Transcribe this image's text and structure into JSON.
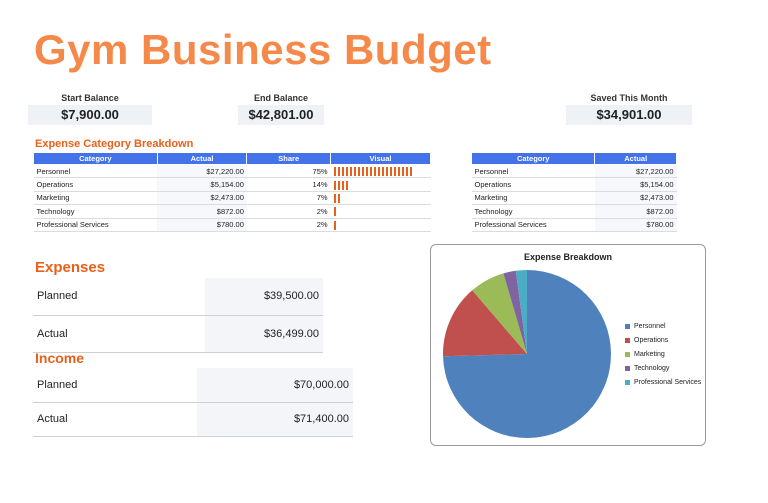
{
  "title": "Gym Business Budget",
  "kpis": {
    "start": {
      "label": "Start Balance",
      "value": "$7,900.00"
    },
    "end": {
      "label": "End Balance",
      "value": "$42,801.00"
    },
    "saved": {
      "label": "Saved This Month",
      "value": "$34,901.00"
    }
  },
  "breakdown": {
    "title": "Expense Category Breakdown",
    "headers": [
      "Category",
      "Actual",
      "Share",
      "Visual"
    ],
    "rows": [
      {
        "category": "Personnel",
        "actual": "$27,220.00",
        "share": "75%",
        "bars": 20
      },
      {
        "category": "Operations",
        "actual": "$5,154.00",
        "share": "14%",
        "bars": 4
      },
      {
        "category": "Marketing",
        "actual": "$2,473.00",
        "share": "7%",
        "bars": 2
      },
      {
        "category": "Technology",
        "actual": "$872.00",
        "share": "2%",
        "bars": 1
      },
      {
        "category": "Professional Services",
        "actual": "$780.00",
        "share": "2%",
        "bars": 1
      }
    ]
  },
  "summary_table": {
    "headers": [
      "Category",
      "Actual"
    ],
    "rows": [
      {
        "category": "Personnel",
        "actual": "$27,220.00"
      },
      {
        "category": "Operations",
        "actual": "$5,154.00"
      },
      {
        "category": "Marketing",
        "actual": "$2,473.00"
      },
      {
        "category": "Technology",
        "actual": "$872.00"
      },
      {
        "category": "Professional Services",
        "actual": "$780.00"
      }
    ]
  },
  "expenses": {
    "title": "Expenses",
    "planned_label": "Planned",
    "planned_value": "$39,500.00",
    "actual_label": "Actual",
    "actual_value": "$36,499.00"
  },
  "income": {
    "title": "Income",
    "planned_label": "Planned",
    "planned_value": "$70,000.00",
    "actual_label": "Actual",
    "actual_value": "$71,400.00"
  },
  "colors": {
    "accent": "#e8601a",
    "title": "#f4894a",
    "header_blue": "#4472e8"
  },
  "chart_data": {
    "type": "pie",
    "title": "Expense Breakdown",
    "legend_position": "right",
    "categories": [
      "Personnel",
      "Operations",
      "Marketing",
      "Technology",
      "Professional Services"
    ],
    "values": [
      27220,
      5154,
      2473,
      872,
      780
    ],
    "colors": [
      "#4f81bd",
      "#c0504d",
      "#9bbb59",
      "#8064a2",
      "#4bacc6"
    ]
  }
}
